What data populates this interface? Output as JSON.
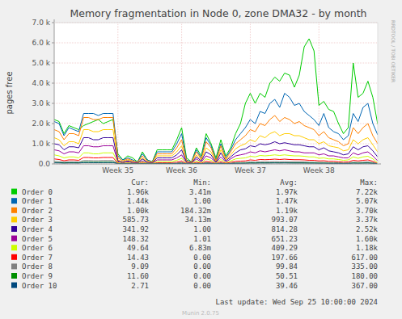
{
  "chart_data": {
    "type": "line",
    "title": "Memory fragmentation in Node 0, zone DMA32 - by month",
    "y_label": "pages free",
    "credit": "RRDTOOL / TOBI OETIKER",
    "footer": "Munin 2.0.75",
    "last_update": "Last update: Wed Sep 25 10:00:00 2024",
    "grid": true,
    "ylim": [
      0,
      7000
    ],
    "yticks": [
      {
        "value": 0,
        "label": "0.0"
      },
      {
        "value": 1000,
        "label": "1.0 k"
      },
      {
        "value": 2000,
        "label": "2.0 k"
      },
      {
        "value": 3000,
        "label": "3.0 k"
      },
      {
        "value": 4000,
        "label": "4.0 k"
      },
      {
        "value": 5000,
        "label": "5.0 k"
      },
      {
        "value": 6000,
        "label": "6.0 k"
      },
      {
        "value": 7000,
        "label": "7.0 k"
      }
    ],
    "categories": [
      null,
      null,
      null,
      null,
      null,
      null,
      null,
      null,
      null,
      null,
      null,
      null,
      null,
      "Week 35",
      null,
      null,
      null,
      null,
      null,
      null,
      null,
      null,
      null,
      null,
      null,
      null,
      "Week 36",
      null,
      null,
      null,
      null,
      null,
      null,
      null,
      null,
      null,
      null,
      null,
      null,
      null,
      "Week 37",
      null,
      null,
      null,
      null,
      null,
      null,
      null,
      null,
      null,
      null,
      null,
      null,
      null,
      "Week 38",
      null,
      null,
      null,
      null,
      null,
      null,
      null,
      null,
      null,
      null,
      null,
      null
    ],
    "series": [
      {
        "name": "Order 0",
        "color": "#00cc00",
        "values": [
          2200,
          2100,
          1500,
          1900,
          1800,
          1700,
          1900,
          2000,
          2100,
          2200,
          2000,
          2100,
          2200,
          500,
          200,
          400,
          300,
          100,
          600,
          200,
          100,
          700,
          700,
          700,
          700,
          1200,
          1800,
          300,
          100,
          800,
          400,
          1500,
          1000,
          300,
          1200,
          400,
          800,
          1500,
          2000,
          3000,
          3500,
          3000,
          3500,
          3300,
          4000,
          4300,
          4100,
          4500,
          4400,
          3800,
          4400,
          5800,
          6200,
          5600,
          2900,
          3100,
          2700,
          2600,
          2000,
          1500,
          1800,
          5000,
          3300,
          3500,
          4100,
          3300,
          1960
        ]
      },
      {
        "name": "Order 1",
        "color": "#0066b3",
        "values": [
          2100,
          2000,
          1400,
          1800,
          1700,
          1600,
          2500,
          2500,
          2500,
          2400,
          2500,
          2500,
          2500,
          400,
          200,
          300,
          200,
          100,
          500,
          200,
          100,
          600,
          600,
          600,
          600,
          1000,
          1500,
          200,
          100,
          700,
          300,
          1300,
          900,
          200,
          1000,
          300,
          700,
          1200,
          1500,
          1800,
          2200,
          2000,
          2600,
          2500,
          3000,
          3200,
          2800,
          3500,
          3300,
          2900,
          3000,
          2600,
          2400,
          2200,
          1900,
          2500,
          1800,
          1600,
          1500,
          1200,
          1400,
          2500,
          2100,
          2800,
          3000,
          2000,
          1440
        ]
      },
      {
        "name": "Order 2",
        "color": "#ff8000",
        "values": [
          1700,
          1600,
          1200,
          1500,
          1500,
          1400,
          2300,
          2300,
          2200,
          2200,
          2300,
          2300,
          2300,
          300,
          150,
          250,
          150,
          80,
          400,
          150,
          80,
          500,
          500,
          500,
          500,
          800,
          1200,
          150,
          80,
          600,
          250,
          1100,
          800,
          150,
          900,
          250,
          600,
          1000,
          1200,
          1400,
          1700,
          1600,
          2000,
          1900,
          2200,
          2400,
          2100,
          2300,
          2200,
          2000,
          2100,
          1900,
          1800,
          1700,
          1400,
          1600,
          1300,
          1200,
          1100,
          900,
          1000,
          1800,
          1500,
          1800,
          2000,
          1400,
          1000
        ]
      },
      {
        "name": "Order 3",
        "color": "#ffcc00",
        "values": [
          1300,
          1200,
          900,
          1100,
          1100,
          1000,
          1700,
          1700,
          1600,
          1600,
          1700,
          1700,
          1700,
          200,
          100,
          200,
          100,
          50,
          300,
          100,
          50,
          400,
          400,
          400,
          400,
          600,
          900,
          100,
          50,
          450,
          200,
          800,
          600,
          100,
          700,
          200,
          450,
          750,
          900,
          1000,
          1200,
          1100,
          1400,
          1300,
          1500,
          1600,
          1400,
          1500,
          1500,
          1400,
          1400,
          1300,
          1200,
          1200,
          1000,
          1100,
          900,
          850,
          800,
          650,
          700,
          1200,
          1000,
          1200,
          1300,
          950,
          586
        ]
      },
      {
        "name": "Order 4",
        "color": "#330099",
        "values": [
          1000,
          950,
          700,
          850,
          850,
          800,
          1300,
          1300,
          1200,
          1200,
          1300,
          1300,
          1300,
          150,
          80,
          150,
          80,
          40,
          250,
          80,
          40,
          300,
          300,
          300,
          300,
          450,
          700,
          80,
          40,
          350,
          150,
          600,
          450,
          80,
          550,
          150,
          350,
          550,
          700,
          750,
          900,
          850,
          1000,
          950,
          1000,
          1100,
          1000,
          1050,
          1000,
          950,
          950,
          900,
          850,
          850,
          700,
          800,
          650,
          600,
          550,
          450,
          500,
          850,
          700,
          850,
          900,
          650,
          342
        ]
      },
      {
        "name": "Order 5",
        "color": "#990099",
        "values": [
          700,
          650,
          500,
          600,
          600,
          550,
          900,
          900,
          850,
          850,
          900,
          900,
          900,
          100,
          50,
          100,
          50,
          30,
          150,
          50,
          30,
          200,
          200,
          200,
          200,
          300,
          450,
          50,
          30,
          250,
          100,
          400,
          300,
          50,
          350,
          100,
          250,
          400,
          450,
          500,
          600,
          550,
          650,
          600,
          650,
          700,
          650,
          700,
          650,
          600,
          600,
          550,
          550,
          550,
          450,
          500,
          400,
          400,
          350,
          300,
          300,
          550,
          450,
          550,
          600,
          400,
          148
        ]
      },
      {
        "name": "Order 6",
        "color": "#ccff00",
        "values": [
          450,
          400,
          300,
          350,
          350,
          300,
          550,
          550,
          500,
          500,
          550,
          550,
          550,
          60,
          30,
          60,
          30,
          20,
          100,
          30,
          20,
          120,
          120,
          120,
          120,
          180,
          280,
          30,
          20,
          150,
          60,
          250,
          180,
          30,
          220,
          60,
          150,
          250,
          280,
          300,
          380,
          350,
          420,
          400,
          420,
          450,
          420,
          450,
          420,
          400,
          400,
          380,
          350,
          350,
          280,
          300,
          250,
          250,
          220,
          180,
          200,
          350,
          280,
          350,
          380,
          250,
          50
        ]
      },
      {
        "name": "Order 7",
        "color": "#ff0000",
        "values": [
          250,
          220,
          160,
          200,
          200,
          180,
          320,
          320,
          300,
          300,
          320,
          320,
          320,
          30,
          10,
          30,
          10,
          0,
          50,
          10,
          0,
          60,
          60,
          60,
          60,
          90,
          140,
          10,
          0,
          80,
          30,
          130,
          90,
          10,
          110,
          30,
          80,
          130,
          140,
          150,
          200,
          180,
          220,
          210,
          220,
          240,
          220,
          240,
          220,
          210,
          210,
          200,
          180,
          180,
          150,
          160,
          130,
          130,
          110,
          90,
          100,
          180,
          150,
          180,
          200,
          130,
          14
        ]
      },
      {
        "name": "Order 8",
        "color": "#808080",
        "values": [
          130,
          120,
          90,
          110,
          110,
          100,
          170,
          170,
          160,
          160,
          170,
          170,
          170,
          15,
          5,
          15,
          5,
          0,
          25,
          5,
          0,
          30,
          30,
          30,
          30,
          45,
          70,
          5,
          0,
          40,
          15,
          65,
          45,
          5,
          55,
          15,
          40,
          65,
          70,
          75,
          100,
          90,
          110,
          105,
          110,
          120,
          110,
          120,
          110,
          105,
          105,
          100,
          90,
          90,
          75,
          80,
          65,
          65,
          55,
          45,
          50,
          90,
          75,
          90,
          100,
          65,
          9
        ]
      },
      {
        "name": "Order 9",
        "color": "#008f00",
        "values": [
          70,
          65,
          50,
          60,
          60,
          55,
          90,
          90,
          85,
          85,
          90,
          90,
          90,
          8,
          3,
          8,
          3,
          0,
          12,
          3,
          0,
          15,
          15,
          15,
          15,
          22,
          35,
          3,
          0,
          20,
          8,
          32,
          22,
          3,
          28,
          8,
          20,
          32,
          35,
          38,
          50,
          45,
          55,
          52,
          55,
          60,
          55,
          60,
          55,
          52,
          52,
          50,
          45,
          45,
          38,
          40,
          32,
          32,
          28,
          22,
          25,
          45,
          38,
          45,
          50,
          32,
          12
        ]
      },
      {
        "name": "Order 10",
        "color": "#00487d",
        "values": [
          55,
          50,
          40,
          45,
          45,
          42,
          70,
          70,
          65,
          65,
          70,
          70,
          70,
          6,
          2,
          6,
          2,
          0,
          10,
          2,
          0,
          12,
          12,
          12,
          12,
          18,
          28,
          2,
          0,
          16,
          6,
          26,
          18,
          2,
          22,
          6,
          16,
          26,
          28,
          30,
          40,
          36,
          44,
          42,
          44,
          48,
          44,
          48,
          44,
          42,
          42,
          40,
          36,
          36,
          30,
          32,
          26,
          26,
          22,
          18,
          20,
          36,
          30,
          36,
          40,
          26,
          3
        ]
      }
    ],
    "legend_stats": {
      "columns": [
        "Cur:",
        "Min:",
        "Avg:",
        "Max:"
      ],
      "rows": [
        [
          "1.96k",
          "3.41m",
          "1.97k",
          "7.22k"
        ],
        [
          "1.44k",
          "1.00",
          "1.47k",
          "5.07k"
        ],
        [
          "1.00k",
          "184.32m",
          "1.19k",
          "3.70k"
        ],
        [
          "585.73",
          "34.13m",
          "993.07",
          "3.37k"
        ],
        [
          "341.92",
          "1.00",
          "814.28",
          "2.52k"
        ],
        [
          "148.32",
          "1.01",
          "651.23",
          "1.60k"
        ],
        [
          "49.64",
          "6.83m",
          "409.29",
          "1.18k"
        ],
        [
          "14.43",
          "0.00",
          "197.66",
          "617.00"
        ],
        [
          "9.09",
          "0.00",
          "99.84",
          "335.00"
        ],
        [
          "11.60",
          "0.00",
          "50.51",
          "180.00"
        ],
        [
          "2.71",
          "0.00",
          "39.46",
          "367.00"
        ]
      ]
    }
  }
}
